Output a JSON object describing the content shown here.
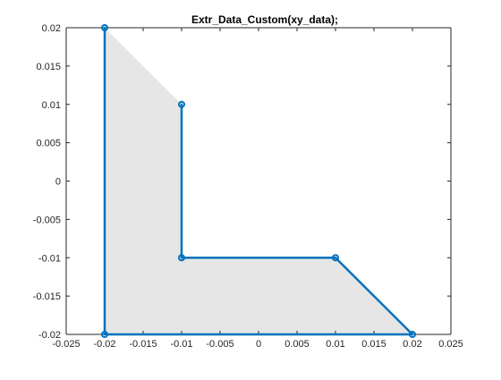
{
  "chart_data": {
    "type": "line",
    "title": "Extr_Data_Custom(xy_data);",
    "xlabel": "",
    "ylabel": "",
    "xlim": [
      -0.025,
      0.025
    ],
    "ylim": [
      -0.02,
      0.02
    ],
    "grid": false,
    "x_ticks": [
      -0.025,
      -0.02,
      -0.015,
      -0.01,
      -0.005,
      0,
      0.005,
      0.01,
      0.015,
      0.02,
      0.025
    ],
    "x_tick_labels": [
      "-0.025",
      "-0.02",
      "-0.015",
      "-0.01",
      "-0.005",
      "0",
      "0.005",
      "0.01",
      "0.015",
      "0.02",
      "0.025"
    ],
    "y_ticks": [
      0.02,
      0.015,
      0.01,
      0.005,
      0,
      -0.005,
      -0.01,
      -0.015,
      -0.02
    ],
    "y_tick_labels": [
      "0.02",
      "0.015",
      "0.01",
      "0.005",
      "0",
      "-0.005",
      "-0.01",
      "-0.015",
      "-0.02"
    ],
    "series": [
      {
        "x": [
          -0.02,
          -0.02,
          0.02,
          0.01,
          -0.01,
          -0.01
        ],
        "y": [
          0.02,
          -0.02,
          -0.02,
          -0.01,
          -0.01,
          0.01
        ],
        "color": "#0072bd",
        "marker": "circle"
      }
    ],
    "fill": {
      "x": [
        -0.02,
        -0.01,
        -0.01,
        0.01,
        0.02,
        -0.02
      ],
      "y": [
        0.02,
        0.01,
        -0.01,
        -0.01,
        -0.02,
        -0.02
      ],
      "color": "#e6e6e6"
    },
    "colors": {
      "line": "#0072bd",
      "fill": "#e6e6e6",
      "axis": "#262626"
    }
  }
}
